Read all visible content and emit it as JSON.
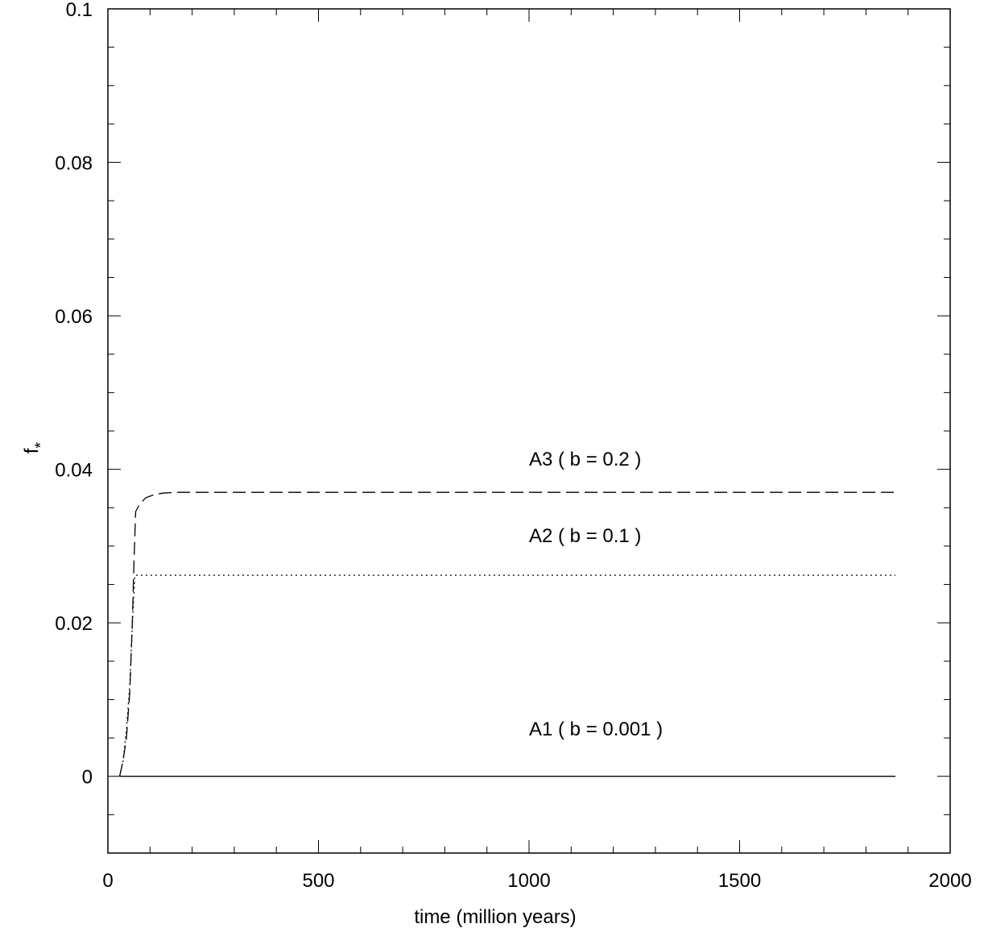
{
  "chart_data": {
    "type": "line",
    "title": "",
    "xlabel": "time (million years)",
    "ylabel": "f",
    "ylabel_subscript": "*",
    "xlim": [
      0,
      2000
    ],
    "ylim": [
      -0.01,
      0.1
    ],
    "x_ticks": [
      0,
      500,
      1000,
      1500,
      2000
    ],
    "x_tick_labels": [
      "0",
      "500",
      "1000",
      "1500",
      "2000"
    ],
    "y_ticks": [
      0,
      0.02,
      0.04,
      0.06,
      0.08,
      0.1
    ],
    "y_tick_labels": [
      "0",
      "0.02",
      "0.04",
      "0.06",
      "0.08",
      "0.1"
    ],
    "x_minor_step": 100,
    "y_minor_step": 0.005,
    "grid": false,
    "series": [
      {
        "name": "A1 ( b = 0.001 )",
        "style": "solid",
        "x": [
          30,
          1870
        ],
        "y": [
          0.0,
          0.0
        ]
      },
      {
        "name": "A2 ( b = 0.1 )",
        "style": "dotted",
        "x": [
          28,
          36,
          44,
          52,
          56,
          60,
          64,
          1870
        ],
        "y": [
          0.0,
          0.002,
          0.006,
          0.012,
          0.017,
          0.022,
          0.0262,
          0.0262
        ]
      },
      {
        "name": "A3 ( b = 0.2 )",
        "style": "dashed",
        "x": [
          28,
          36,
          44,
          52,
          58,
          62,
          66,
          76,
          90,
          110,
          130,
          160,
          200,
          1870
        ],
        "y": [
          0.0,
          0.002,
          0.005,
          0.011,
          0.02,
          0.028,
          0.0345,
          0.0355,
          0.0363,
          0.0367,
          0.0369,
          0.037,
          0.037,
          0.037
        ]
      }
    ],
    "annotations": [
      {
        "text": "A3 ( b = 0.2 )",
        "x": 1000,
        "y": 0.0405
      },
      {
        "text": "A2 ( b = 0.1 )",
        "x": 1000,
        "y": 0.0305
      },
      {
        "text": "A1 ( b = 0.001 )",
        "x": 1000,
        "y": 0.0053
      }
    ]
  }
}
